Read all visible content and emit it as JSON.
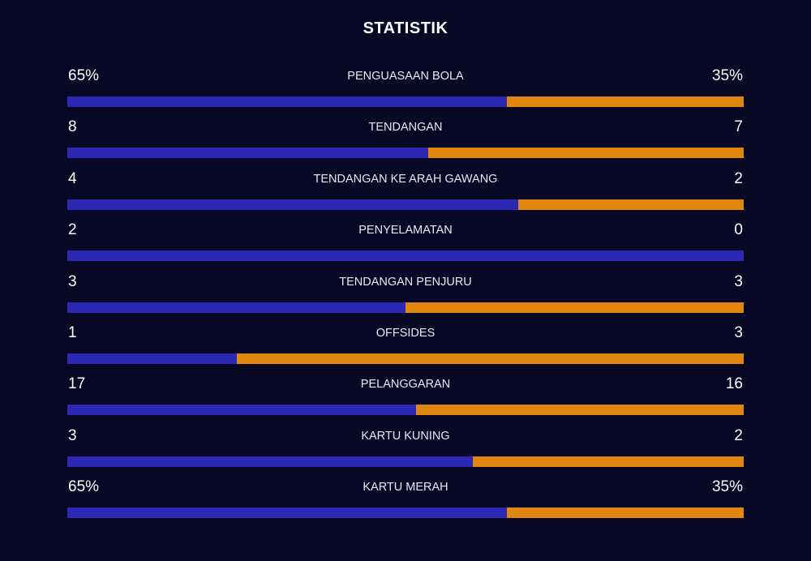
{
  "title": "STATISTIK",
  "colors": {
    "background": "#080723",
    "home_bar": "#2a28b4",
    "away_bar": "#e1860f"
  },
  "stats": [
    {
      "label": "PENGUASAAN BOLA",
      "home": "65%",
      "away": "35%",
      "home_share": 0.65
    },
    {
      "label": "TENDANGAN",
      "home": "8",
      "away": "7",
      "home_share": 0.533
    },
    {
      "label": "TENDANGAN KE ARAH GAWANG",
      "home": "4",
      "away": "2",
      "home_share": 0.667
    },
    {
      "label": "PENYELAMATAN",
      "home": "2",
      "away": "0",
      "home_share": 1.0
    },
    {
      "label": "TENDANGAN PENJURU",
      "home": "3",
      "away": "3",
      "home_share": 0.5
    },
    {
      "label": "OFFSIDES",
      "home": "1",
      "away": "3",
      "home_share": 0.25
    },
    {
      "label": "PELANGGARAN",
      "home": "17",
      "away": "16",
      "home_share": 0.515
    },
    {
      "label": "KARTU KUNING",
      "home": "3",
      "away": "2",
      "home_share": 0.6
    },
    {
      "label": "KARTU MERAH",
      "home": "65%",
      "away": "35%",
      "home_share": 0.65
    }
  ]
}
